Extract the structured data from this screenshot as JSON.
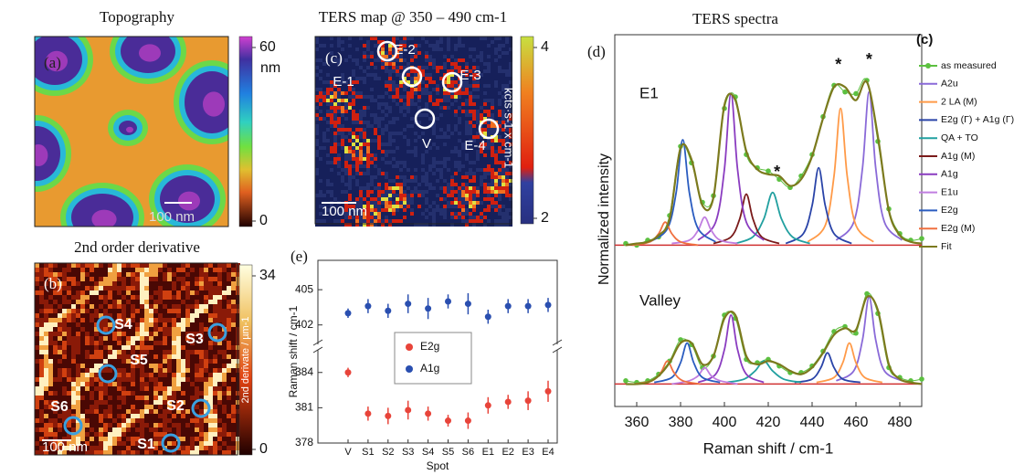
{
  "chart_data": [
    {
      "type": "scatter",
      "label": "(e)",
      "ylabel": "Raman shift / cm-1",
      "xlabel": "Spot",
      "categories": [
        "V",
        "S1",
        "S2",
        "S3",
        "S4",
        "S5",
        "S6",
        "E1",
        "E2",
        "E3",
        "E4"
      ],
      "ylims": [
        [
          378,
          386
        ],
        [
          400.5,
          407.5
        ]
      ],
      "yticks": [
        378,
        381,
        384,
        402,
        405
      ],
      "series": [
        {
          "name": "E2g",
          "color": "#e8443a",
          "values": [
            384.0,
            380.5,
            380.3,
            380.8,
            380.5,
            379.9,
            379.9,
            381.2,
            381.5,
            381.6,
            382.4
          ],
          "errors": [
            0.4,
            0.6,
            0.7,
            0.8,
            0.6,
            0.5,
            0.7,
            0.7,
            0.6,
            0.8,
            0.9
          ]
        },
        {
          "name": "A1g",
          "color": "#2a4fb0",
          "values": [
            403.0,
            403.6,
            403.2,
            403.8,
            403.4,
            404.0,
            403.8,
            402.7,
            403.6,
            403.6,
            403.7
          ],
          "errors": [
            0.4,
            0.6,
            0.6,
            0.8,
            0.9,
            0.6,
            0.9,
            0.6,
            0.6,
            0.6,
            0.6
          ]
        }
      ]
    },
    {
      "type": "line",
      "title": "TERS spectra",
      "label": "(d)",
      "tag": "(c)",
      "xlabel": "Raman shift / cm-1",
      "ylabel": "Normalized intensity",
      "xlim": [
        350,
        490
      ],
      "xticks": [
        360,
        380,
        400,
        420,
        440,
        460,
        480
      ],
      "x": [
        355,
        360,
        365,
        370,
        375,
        380,
        385,
        390,
        395,
        400,
        405,
        410,
        415,
        420,
        425,
        430,
        435,
        440,
        445,
        450,
        455,
        460,
        465,
        470,
        475,
        480,
        485,
        490
      ],
      "panels": [
        {
          "label": "E1",
          "ylim": [
            -0.07,
            1.15
          ]
        },
        {
          "label": "Valley",
          "ylim": [
            -0.07,
            0.57
          ]
        }
      ],
      "annotations": [
        {
          "text": "*",
          "x": 424,
          "y": 0.44
        },
        {
          "text": "*",
          "x": 452,
          "y": 1.09
        },
        {
          "text": "*",
          "x": 466,
          "y": 1.12
        }
      ],
      "series": [
        {
          "name": "as measured",
          "color": "#5cc040",
          "markers": true,
          "curves": [
            {
              "values": [
                0.01,
                0,
                0.03,
                0.05,
                0.18,
                0.6,
                0.5,
                0.26,
                0.3,
                0.83,
                0.9,
                0.55,
                0.47,
                0.45,
                0.4,
                0.35,
                0.42,
                0.55,
                0.78,
                0.97,
                0.93,
                0.92,
                1.0,
                0.63,
                0.22,
                0.07,
                0.03,
                0.04
              ]
            },
            {
              "values": [
                0.02,
                0.01,
                0.02,
                0.06,
                0.14,
                0.27,
                0.24,
                0.1,
                0.17,
                0.42,
                0.4,
                0.15,
                0.13,
                0.15,
                0.11,
                0.07,
                0.07,
                0.11,
                0.2,
                0.32,
                0.35,
                0.31,
                0.55,
                0.43,
                0.1,
                0.04,
                0.02,
                0.03
              ]
            }
          ]
        },
        {
          "name": "A2u",
          "color": "#8a6ad8",
          "curves": [
            {
              "x": [
                451,
                459,
                463,
                466,
                469,
                473,
                481
              ],
              "values": [
                0.03,
                0.14,
                0.47,
                0.93,
                0.47,
                0.14,
                0.03
              ]
            },
            {
              "x": [
                451,
                459,
                463,
                466,
                469,
                473,
                481
              ],
              "values": [
                0.02,
                0.08,
                0.27,
                0.53,
                0.27,
                0.08,
                0.02
              ]
            }
          ]
        },
        {
          "name": "2 LA (M)",
          "color": "#ff9a48",
          "curves": [
            {
              "x": [
                438,
                446,
                450,
                453,
                456,
                460,
                468
              ],
              "values": [
                0.02,
                0.12,
                0.42,
                0.83,
                0.42,
                0.12,
                0.02
              ]
            },
            {
              "x": [
                442,
                450,
                454,
                457,
                460,
                464,
                472
              ],
              "values": [
                0.01,
                0.04,
                0.13,
                0.25,
                0.13,
                0.04,
                0.01
              ]
            }
          ]
        },
        {
          "name": "E2g (Γ) + A1g (Γ)",
          "color": "#2a44a8",
          "curves": [
            {
              "x": [
                428,
                436,
                440,
                443,
                446,
                450,
                458
              ],
              "values": [
                0.01,
                0.07,
                0.24,
                0.47,
                0.24,
                0.07,
                0.01
              ]
            },
            {
              "x": [
                432,
                440,
                444,
                447,
                450,
                454,
                462
              ],
              "values": [
                0.01,
                0.03,
                0.1,
                0.19,
                0.1,
                0.03,
                0.01
              ]
            }
          ]
        },
        {
          "name": "QA + TO",
          "color": "#22a0a0",
          "curves": [
            {
              "x": [
                405,
                413,
                418,
                422,
                426,
                431,
                439
              ],
              "values": [
                0.01,
                0.05,
                0.16,
                0.32,
                0.16,
                0.05,
                0.01
              ]
            },
            {
              "x": [
                401,
                409,
                414,
                418,
                422,
                427,
                435
              ],
              "values": [
                0.01,
                0.03,
                0.08,
                0.14,
                0.08,
                0.03,
                0.01
              ]
            }
          ]
        },
        {
          "name": "A1g (M)",
          "color": "#7a1a1a",
          "curves": [
            {
              "x": [
                395,
                403,
                407,
                410,
                413,
                417,
                425
              ],
              "values": [
                0.01,
                0.05,
                0.16,
                0.31,
                0.16,
                0.05,
                0.01
              ]
            },
            null
          ]
        },
        {
          "name": "A1g",
          "color": "#8a3cc0",
          "curves": [
            {
              "x": [
                388,
                396,
                400,
                403,
                406,
                410,
                418
              ],
              "values": [
                0.03,
                0.14,
                0.46,
                0.92,
                0.46,
                0.14,
                0.03
              ]
            },
            {
              "x": [
                388,
                396,
                400,
                403,
                406,
                410,
                418
              ],
              "values": [
                0.01,
                0.06,
                0.21,
                0.42,
                0.21,
                0.06,
                0.01
              ]
            }
          ]
        },
        {
          "name": "E1u",
          "color": "#c07ee0",
          "curves": [
            {
              "x": [
                376,
                384,
                388,
                391,
                394,
                398,
                406
              ],
              "values": [
                0.01,
                0.03,
                0.09,
                0.17,
                0.09,
                0.03,
                0.01
              ]
            },
            {
              "x": [
                376,
                384,
                388,
                391,
                394,
                398,
                406
              ],
              "values": [
                0,
                0.02,
                0.05,
                0.1,
                0.05,
                0.02,
                0
              ]
            }
          ]
        },
        {
          "name": "E2g",
          "color": "#2a5cc0",
          "curves": [
            {
              "x": [
                366,
                374,
                378,
                381,
                384,
                388,
                396
              ],
              "values": [
                0.02,
                0.1,
                0.32,
                0.64,
                0.32,
                0.1,
                0.02
              ]
            },
            {
              "x": [
                368,
                376,
                380,
                383,
                386,
                390,
                398
              ],
              "values": [
                0.01,
                0.04,
                0.13,
                0.25,
                0.13,
                0.04,
                0.01
              ]
            }
          ]
        },
        {
          "name": "E2g (M)",
          "color": "#f07040",
          "curves": [
            {
              "x": [
                358,
                366,
                370,
                373,
                376,
                380,
                388
              ],
              "values": [
                0,
                0.02,
                0.07,
                0.14,
                0.07,
                0.02,
                0
              ]
            },
            {
              "x": [
                359,
                367,
                371,
                374,
                377,
                381,
                389
              ],
              "values": [
                0,
                0.02,
                0.07,
                0.14,
                0.07,
                0.02,
                0
              ]
            }
          ]
        },
        {
          "name": "Fit",
          "color": "#7c7a1e",
          "curves": [
            {
              "values": [
                0,
                0.01,
                0.02,
                0.06,
                0.16,
                0.59,
                0.52,
                0.24,
                0.29,
                0.85,
                0.88,
                0.57,
                0.46,
                0.43,
                0.42,
                0.36,
                0.4,
                0.54,
                0.77,
                0.96,
                0.96,
                0.88,
                0.99,
                0.66,
                0.21,
                0.06,
                0.02,
                0.01
              ]
            },
            {
              "values": [
                0,
                0,
                0.01,
                0.05,
                0.13,
                0.25,
                0.25,
                0.12,
                0.17,
                0.4,
                0.42,
                0.17,
                0.12,
                0.14,
                0.12,
                0.08,
                0.06,
                0.1,
                0.19,
                0.3,
                0.34,
                0.33,
                0.53,
                0.45,
                0.12,
                0.03,
                0.01,
                0
              ]
            }
          ]
        }
      ]
    }
  ],
  "maps": [
    {
      "label": "(a)",
      "title": "Topography",
      "scalebar": "100 nm",
      "colorbar_max": 60,
      "colorbar_min": 0,
      "colorbar_unit": "nm"
    },
    {
      "label": "(b)",
      "title": "2nd order derivative",
      "scalebar": "100 nm",
      "colorbar_max": 34,
      "colorbar_min": 0,
      "colorbar_label": "2nd derivate / µm-1",
      "spots": [
        "S1",
        "S2",
        "S3",
        "S4",
        "S5",
        "S6"
      ]
    },
    {
      "label": "(c)",
      "title": "TERS map @ 350 – 490 cm-1",
      "scalebar": "100 nm",
      "colorbar_max": 4,
      "colorbar_min": 2,
      "colorbar_label": "kcts·s-1 x cm-1",
      "spots": [
        "E-1",
        "E-2",
        "E-3",
        "E-4",
        "V"
      ]
    }
  ]
}
